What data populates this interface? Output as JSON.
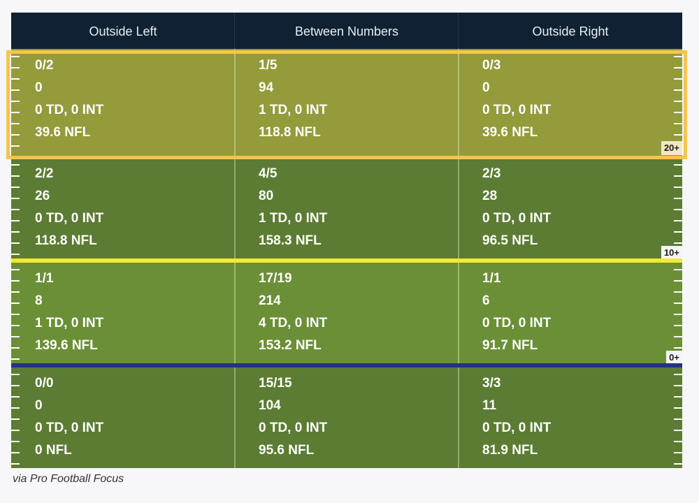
{
  "colors": {
    "header_bg": "#0f2133",
    "zone_20_plus": "#939b3a",
    "zone_10_plus": "#5b7c32",
    "zone_0_plus": "#6b8f36",
    "zone_behind": "#5b7c32",
    "line_10": "#f2e83a",
    "line_0": "#243380",
    "highlight": "#f8c44c"
  },
  "chart_data": {
    "type": "table",
    "columns": [
      "Outside Left",
      "Between Numbers",
      "Outside Right"
    ],
    "rows": [
      {
        "zone": "20+",
        "cells": [
          [
            "0/2",
            "0",
            "0 TD, 0 INT",
            "39.6 NFL"
          ],
          [
            "1/5",
            "94",
            "1 TD, 0 INT",
            "118.8 NFL"
          ],
          [
            "0/3",
            "0",
            "0 TD, 0 INT",
            "39.6 NFL"
          ]
        ]
      },
      {
        "zone": "10+",
        "cells": [
          [
            "2/2",
            "26",
            "0 TD, 0 INT",
            "118.8 NFL"
          ],
          [
            "4/5",
            "80",
            "1 TD, 0 INT",
            "158.3 NFL"
          ],
          [
            "2/3",
            "28",
            "0 TD, 0 INT",
            "96.5 NFL"
          ]
        ]
      },
      {
        "zone": "0+",
        "cells": [
          [
            "1/1",
            "8",
            "1 TD, 0 INT",
            "139.6 NFL"
          ],
          [
            "17/19",
            "214",
            "4 TD, 0 INT",
            "153.2 NFL"
          ],
          [
            "1/1",
            "6",
            "0 TD, 0 INT",
            "91.7 NFL"
          ]
        ]
      },
      {
        "zone": "",
        "cells": [
          [
            "0/0",
            "0",
            "0 TD, 0 INT",
            "0 NFL"
          ],
          [
            "15/15",
            "104",
            "0 TD, 0 INT",
            "95.6 NFL"
          ],
          [
            "3/3",
            "11",
            "0 TD, 0 INT",
            "81.9 NFL"
          ]
        ]
      }
    ]
  },
  "caption": "via Pro Football Focus"
}
